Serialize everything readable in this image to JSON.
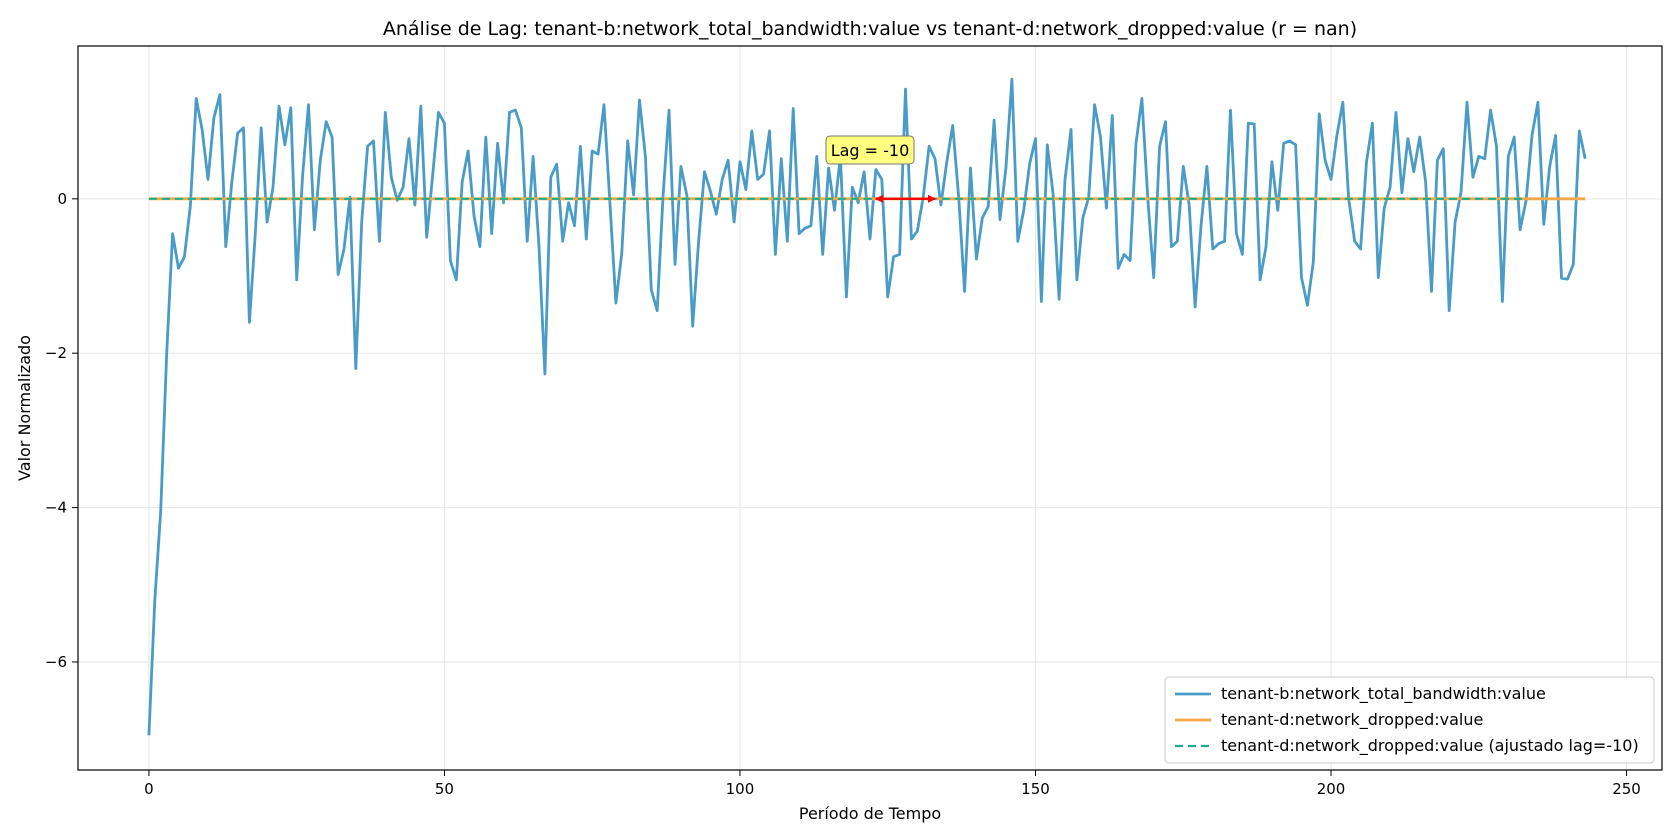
{
  "chart_data": {
    "type": "line",
    "title": "Análise de Lag: tenant-b:network_total_bandwidth:value vs tenant-d:network_dropped:value (r = nan)",
    "xlabel": "Período de Tempo",
    "ylabel": "Valor Normalizado",
    "xlim": [
      -12,
      256
    ],
    "ylim": [
      -7.4,
      1.98
    ],
    "x_ticks": [
      0,
      50,
      100,
      150,
      200,
      250
    ],
    "x_tick_labels": [
      "0",
      "50",
      "100",
      "150",
      "200",
      "250"
    ],
    "y_ticks": [
      -6,
      -4,
      -2,
      0
    ],
    "y_tick_labels": [
      "−6",
      "−4",
      "−2",
      "0"
    ],
    "grid": true,
    "legend_position": "bottom-right",
    "series": [
      {
        "name": "tenant-b:network_total_bandwidth:value",
        "color": "#4a9cc7",
        "style": "solid",
        "x_start": 0,
        "values": [
          -6.95,
          -5.2,
          -4.05,
          -2.0,
          -0.45,
          -0.9,
          -0.75,
          -0.1,
          1.3,
          0.9,
          0.25,
          1.05,
          1.35,
          -0.62,
          0.2,
          0.85,
          0.92,
          -1.6,
          -0.45,
          0.92,
          -0.3,
          0.15,
          1.2,
          0.7,
          1.18,
          -1.05,
          0.3,
          1.22,
          -0.4,
          0.5,
          1.0,
          0.8,
          -0.98,
          -0.65,
          0.02,
          -2.2,
          -0.3,
          0.68,
          0.75,
          -0.55,
          1.12,
          0.28,
          -0.02,
          0.15,
          0.78,
          -0.08,
          1.2,
          -0.5,
          0.3,
          1.12,
          0.98,
          -0.8,
          -1.05,
          0.22,
          0.62,
          -0.22,
          -0.62,
          0.8,
          -0.45,
          0.72,
          -0.05,
          1.12,
          1.15,
          0.92,
          -0.55,
          0.55,
          -0.62,
          -2.27,
          0.28,
          0.45,
          -0.55,
          -0.05,
          -0.35,
          0.68,
          -0.52,
          0.62,
          0.58,
          1.22,
          -0.05,
          -1.35,
          -0.7,
          0.75,
          0.05,
          1.28,
          0.55,
          -1.18,
          -1.45,
          0.05,
          1.15,
          -0.85,
          0.42,
          0.05,
          -1.65,
          -0.55,
          0.35,
          0.1,
          -0.2,
          0.25,
          0.5,
          -0.3,
          0.48,
          0.12,
          0.88,
          0.25,
          0.32,
          0.88,
          -0.72,
          0.52,
          -0.55,
          1.17,
          -0.45,
          -0.38,
          -0.35,
          0.55,
          -0.72,
          0.4,
          -0.15,
          0.55,
          -1.27,
          0.15,
          -0.05,
          0.35,
          -0.52,
          0.38,
          0.25,
          -1.27,
          -0.75,
          -0.72,
          1.42,
          -0.52,
          -0.42,
          0.02,
          0.68,
          0.52,
          -0.08,
          0.48,
          0.95,
          0.02,
          -1.2,
          0.4,
          -0.78,
          -0.25,
          -0.1,
          1.02,
          -0.27,
          0.4,
          1.55,
          -0.55,
          -0.15,
          0.45,
          0.78,
          -1.33,
          0.7,
          0.05,
          -1.3,
          0.25,
          0.9,
          -1.05,
          -0.25,
          0.02,
          1.22,
          0.8,
          -0.12,
          1.08,
          -0.9,
          -0.72,
          -0.8,
          0.72,
          1.3,
          0.0,
          -1.02,
          0.68,
          1.0,
          -0.62,
          -0.55,
          0.42,
          -0.08,
          -1.4,
          -0.35,
          0.42,
          -0.65,
          -0.58,
          -0.55,
          1.15,
          -0.45,
          -0.72,
          0.98,
          0.97,
          -1.05,
          -0.62,
          0.48,
          -0.15,
          0.72,
          0.75,
          0.7,
          -1.02,
          -1.38,
          -0.82,
          1.1,
          0.5,
          0.25,
          0.82,
          1.25,
          0.0,
          -0.55,
          -0.65,
          0.48,
          0.98,
          -1.02,
          -0.12,
          0.15,
          1.12,
          0.08,
          0.78,
          0.35,
          0.8,
          0.22,
          -1.2,
          0.5,
          0.65,
          -1.45,
          -0.3,
          0.08,
          1.25,
          0.28,
          0.55,
          0.52,
          1.15,
          0.68,
          -1.33,
          0.55,
          0.8,
          -0.4,
          -0.02,
          0.82,
          1.25,
          -0.33,
          0.42,
          0.82,
          -1.03,
          -1.04,
          -0.85,
          0.88,
          0.52
        ]
      },
      {
        "name": "tenant-d:network_dropped:value",
        "color": "#f0a84a",
        "style": "solid",
        "x": [
          0,
          243
        ],
        "values": [
          0,
          0
        ]
      },
      {
        "name": "tenant-d:network_dropped:value (ajustado lag=-10)",
        "color": "#1aae8a",
        "style": "dashed",
        "x": [
          0,
          233
        ],
        "values": [
          0,
          0
        ]
      }
    ],
    "annotation": {
      "text": "Lag = -10",
      "box_color": "#ffff80",
      "arrow_color": "#ff0000",
      "arrow_from": [
        133,
        0
      ],
      "arrow_to": [
        123,
        0
      ],
      "text_anchor": [
        122,
        0.62
      ]
    }
  }
}
